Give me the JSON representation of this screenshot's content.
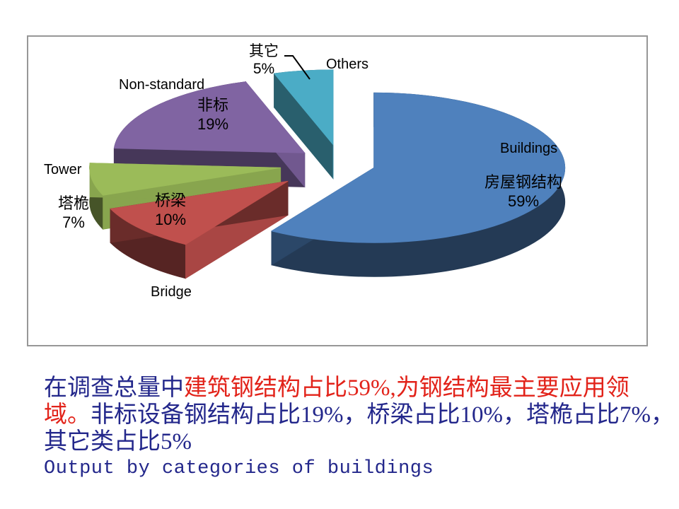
{
  "chart_data": {
    "type": "pie",
    "style": "3d-exploded",
    "title": "",
    "start_angle_deg": 0,
    "direction": "clockwise",
    "unit": "%",
    "slices": [
      {
        "label_en": "Buildings",
        "label_zh": "房屋钢结构",
        "value": 59,
        "pct_label": "59%",
        "color": "#4F81BD"
      },
      {
        "label_en": "Bridge",
        "label_zh": "桥梁",
        "value": 10,
        "pct_label": "10%",
        "color": "#C0504D"
      },
      {
        "label_en": "Tower",
        "label_zh": "塔桅",
        "value": 7,
        "pct_label": "7%",
        "color": "#9BBB59"
      },
      {
        "label_en": "Non-standard",
        "label_zh": "非标",
        "value": 19,
        "pct_label": "19%",
        "color": "#8064A2"
      },
      {
        "label_en": "Others",
        "label_zh": "其它",
        "value": 5,
        "pct_label": "5%",
        "color": "#4BACC6"
      }
    ]
  },
  "caption": {
    "palette": {
      "navy": "#23278B",
      "red": "#E2231A"
    },
    "lines": [
      {
        "mono": false,
        "runs": [
          {
            "c": "navy",
            "t": "在调查总量中"
          },
          {
            "c": "red",
            "t": "建筑钢结构占比59%,为钢结构最主要应用领"
          }
        ]
      },
      {
        "mono": false,
        "runs": [
          {
            "c": "red",
            "t": "域。"
          },
          {
            "c": "navy",
            "t": "非标设备钢结构占比19%，桥梁占比10%，塔桅占比7%，"
          }
        ]
      },
      {
        "mono": false,
        "runs": [
          {
            "c": "navy",
            "t": "其它类占比5%"
          }
        ]
      },
      {
        "mono": true,
        "runs": [
          {
            "c": "navy",
            "t": "Output by categories of buildings"
          }
        ]
      }
    ]
  }
}
